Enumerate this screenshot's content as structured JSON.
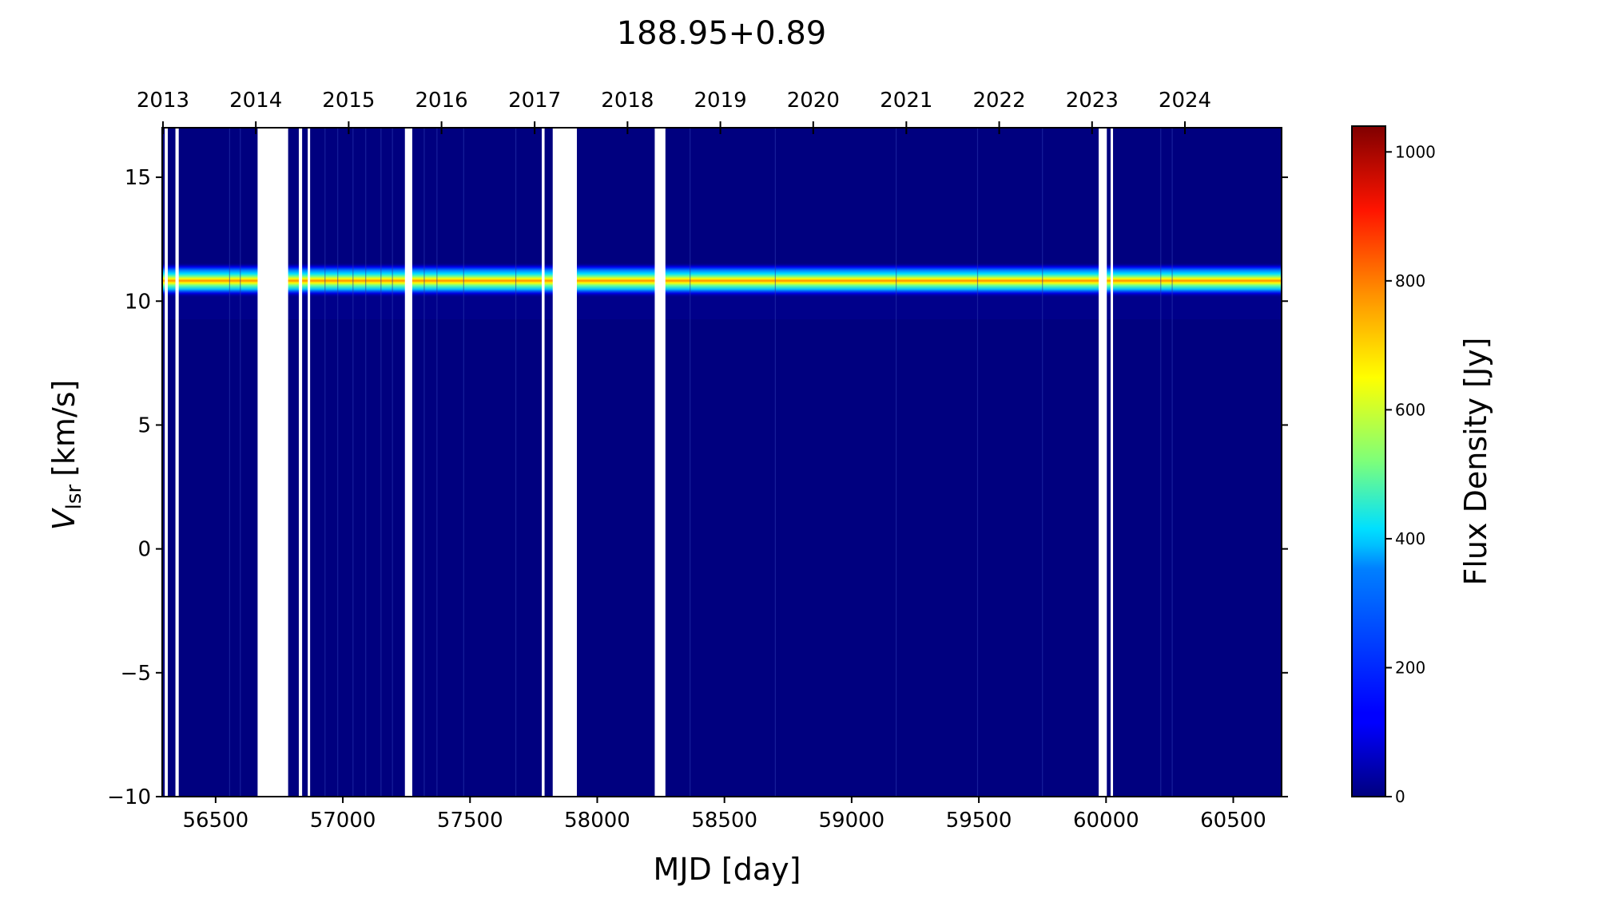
{
  "chart_data": {
    "type": "heatmap",
    "title": "188.95+0.89",
    "xlabel": "MJD [day]",
    "ylabel": {
      "symbol": "V",
      "subscript": "lsr",
      "unit": "[km/s]"
    },
    "colorbar_label": "Flux Density [Jy]",
    "colormap": "jet",
    "xlim": [
      56290,
      60690
    ],
    "ylim": [
      -10,
      17
    ],
    "clim": [
      0,
      1040
    ],
    "x_ticks": [
      56500,
      57000,
      57500,
      58000,
      58500,
      59000,
      59500,
      60000,
      60500
    ],
    "x_tick_labels": [
      "56500",
      "57000",
      "57500",
      "58000",
      "58500",
      "59000",
      "59500",
      "60000",
      "60500"
    ],
    "y_ticks": [
      -10,
      -5,
      0,
      5,
      10,
      15
    ],
    "y_tick_labels": [
      "−10",
      "−5",
      "0",
      "5",
      "10",
      "15"
    ],
    "top_axis": {
      "ticks_mjd": [
        56293,
        56658,
        57023,
        57388,
        57754,
        58119,
        58484,
        58849,
        59215,
        59580,
        59945,
        60310
      ],
      "labels": [
        "2013",
        "2014",
        "2015",
        "2016",
        "2017",
        "2018",
        "2019",
        "2020",
        "2021",
        "2022",
        "2023",
        "2024"
      ]
    },
    "colorbar_ticks": [
      0,
      200,
      400,
      600,
      800,
      1000
    ],
    "colorbar_tick_labels": [
      "0",
      "200",
      "400",
      "600",
      "800",
      "1000"
    ],
    "emission_feature": {
      "velocity_center_kms": 10.9,
      "velocity_extent_kms": [
        10.4,
        11.3
      ],
      "peak_flux_jy": 900,
      "background_flux_jy": 10
    },
    "data_gaps_mjd": [
      [
        56300,
        56312
      ],
      [
        56342,
        56355
      ],
      [
        56665,
        56785
      ],
      [
        56827,
        56840
      ],
      [
        56862,
        56870
      ],
      [
        57244,
        57273
      ],
      [
        57782,
        57793
      ],
      [
        57825,
        57920
      ],
      [
        58226,
        58268
      ],
      [
        59971,
        60003
      ],
      [
        60018,
        60027
      ]
    ],
    "observation_boundaries_mjd": [
      56555,
      56597,
      56930,
      56980,
      57040,
      57090,
      57150,
      57195,
      57320,
      57370,
      57475,
      57680,
      58365,
      58700,
      59175,
      59495,
      59750,
      60215,
      60260
    ]
  }
}
